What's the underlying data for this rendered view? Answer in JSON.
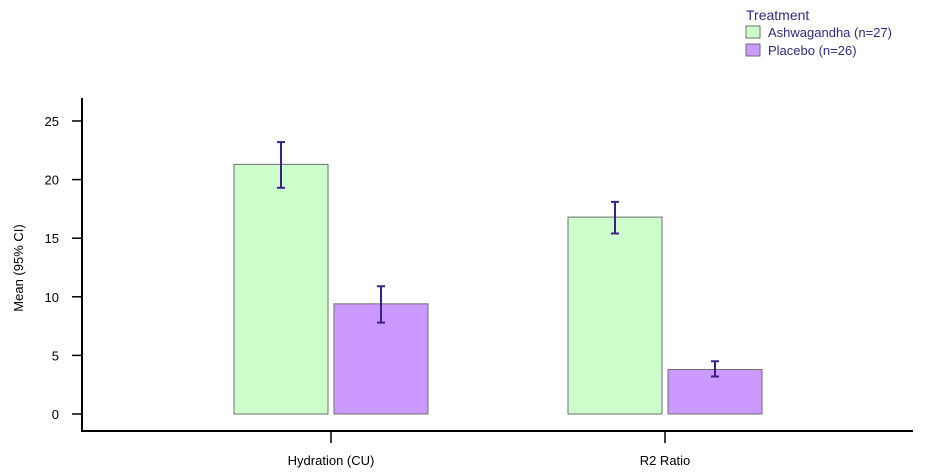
{
  "chart_data": {
    "type": "bar",
    "title": "",
    "xlabel": "",
    "ylabel": "Mean (95% CI)",
    "ylim": [
      0,
      25
    ],
    "yticks": [
      0,
      5,
      10,
      15,
      20,
      25
    ],
    "grid": false,
    "legend_position": "top-right",
    "legend_title": "Treatment",
    "categories": [
      "Hydration (CU)",
      "R2 Ratio"
    ],
    "series": [
      {
        "name": "Ashwagandha (n=27)",
        "values": [
          21.3,
          16.8
        ],
        "ci_low": [
          19.3,
          15.4
        ],
        "ci_high": [
          23.2,
          18.1
        ],
        "color": "#ccffcc",
        "edge": "#6e6e6e"
      },
      {
        "name": "Placebo (n=26)",
        "values": [
          9.4,
          3.8
        ],
        "ci_low": [
          7.8,
          3.2
        ],
        "ci_high": [
          10.9,
          4.5
        ],
        "color": "#cc99ff",
        "edge": "#6e6e6e"
      }
    ],
    "errorbar_color": "#3d1f8c"
  }
}
